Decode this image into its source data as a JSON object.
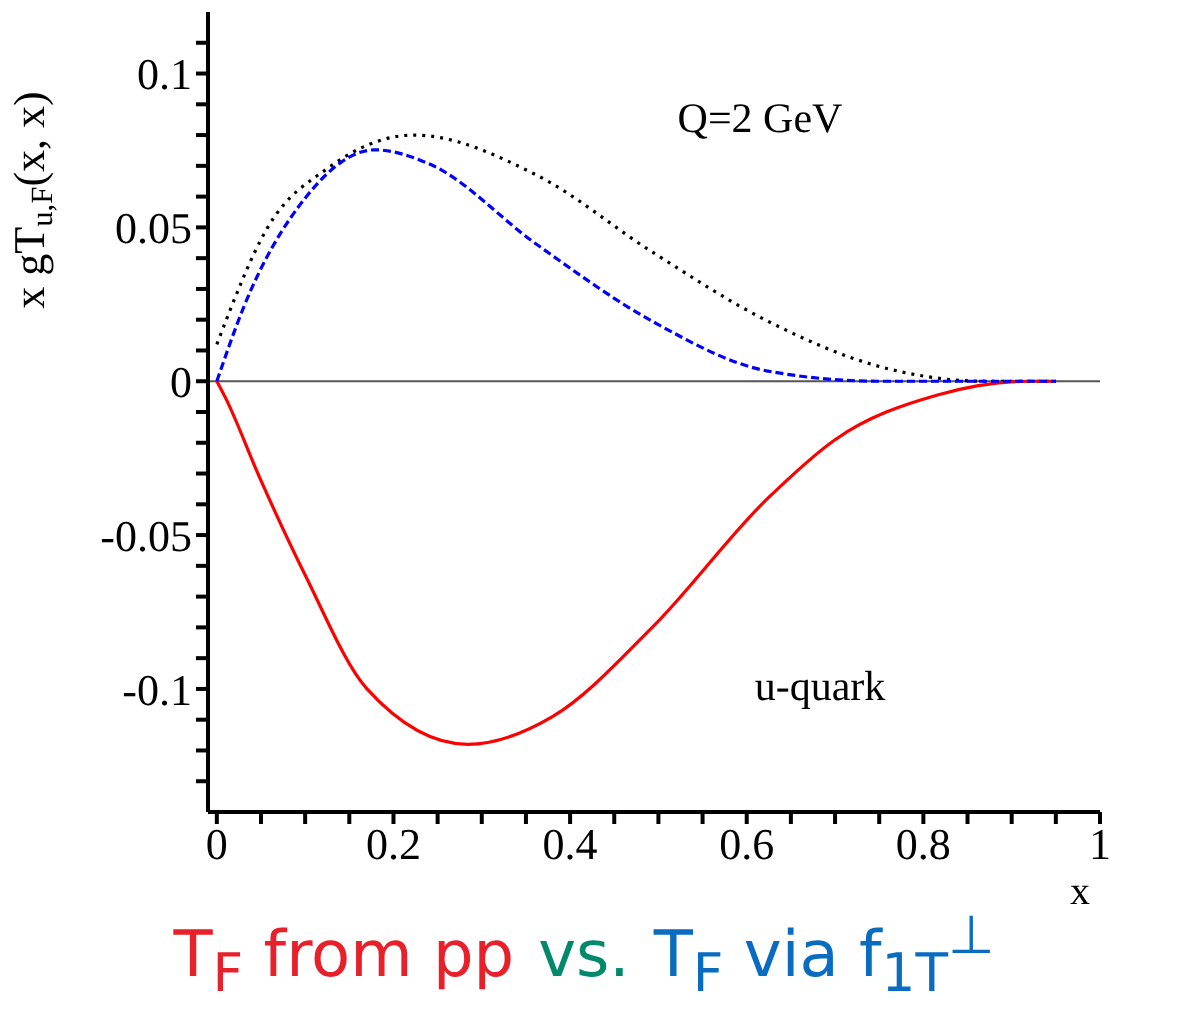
{
  "chart_data": {
    "type": "line",
    "ylabel": "x gT$_{u,F}$(x, x)",
    "xlabel": "x",
    "xlim": [
      -0.01,
      1
    ],
    "xticks": [
      0,
      {
        "value": 0.05,
        "label": null
      },
      0.2,
      {
        "value": 0.1,
        "label": null
      },
      {
        "value": 0.15,
        "label": null
      },
      {
        "value": 0.25,
        "label": null
      },
      {
        "value": 0.3,
        "label": null
      },
      {
        "value": 0.35,
        "label": null
      },
      0.4,
      {
        "value": 0.45,
        "label": null
      },
      {
        "value": 0.5,
        "label": null
      },
      {
        "value": 0.55,
        "label": null
      },
      0.6,
      {
        "value": 0.65,
        "label": null
      },
      {
        "value": 0.7,
        "label": null
      },
      {
        "value": 0.75,
        "label": null
      },
      0.8,
      {
        "value": 0.85,
        "label": null
      },
      {
        "value": 0.9,
        "label": null
      },
      {
        "value": 0.95,
        "label": null
      },
      1
    ],
    "ylim": [
      -0.14,
      0.12
    ],
    "yticks": [
      -0.1,
      -0.05,
      0,
      0.05,
      0.1,
      {
        "value": -0.13,
        "label": null
      },
      {
        "value": -0.12,
        "label": null
      },
      {
        "value": -0.11,
        "label": null
      },
      {
        "value": -0.09,
        "label": null
      },
      {
        "value": -0.08,
        "label": null
      },
      {
        "value": -0.07,
        "label": null
      },
      {
        "value": -0.06,
        "label": null
      },
      {
        "value": -0.04,
        "label": null
      },
      {
        "value": -0.03,
        "label": null
      },
      {
        "value": -0.02,
        "label": null
      },
      {
        "value": -0.01,
        "label": null
      },
      {
        "value": 0.01,
        "label": null
      },
      {
        "value": 0.02,
        "label": null
      },
      {
        "value": 0.03,
        "label": null
      },
      {
        "value": 0.04,
        "label": null
      },
      {
        "value": 0.06,
        "label": null
      },
      {
        "value": 0.07,
        "label": null
      },
      {
        "value": 0.08,
        "label": null
      },
      {
        "value": 0.09,
        "label": null
      },
      {
        "value": 0.11,
        "label": null
      }
    ],
    "marker": "none",
    "ref_lines": [
      {
        "axis": "y",
        "value": 0,
        "color": "#555555",
        "line_style": "solid"
      }
    ],
    "annotations": [
      "Q=2 GeV",
      "u-quark",
      "T$_{F}$ from pp",
      "vs.",
      "T$_{F}$ via f$_{1T}$$^{⊥}$"
    ],
    "series": [
      {
        "color": "#000000",
        "line_style": "dotted",
        "x": [
          0,
          0.057,
          0.127,
          0.223,
          0.362,
          0.493,
          0.624,
          0.754,
          0.87,
          0.95
        ],
        "values": [
          0.012,
          0.0497,
          0.0695,
          0.08,
          0.067,
          0.042,
          0.0195,
          0.0045,
          0,
          0
        ]
      },
      {
        "color": "#0000ff",
        "line_style": "dashed",
        "x": [
          0,
          0.031,
          0.1,
          0.179,
          0.24,
          0.362,
          0.493,
          0.624,
          0.75,
          0.95
        ],
        "values": [
          0,
          0.0245,
          0.0595,
          0.0752,
          0.0707,
          0.0445,
          0.0195,
          0.0033,
          0,
          0
        ]
      },
      {
        "color": "#ff0000",
        "line_style": "solid",
        "x": [
          0,
          0.01,
          0.048,
          0.1,
          0.17,
          0.284,
          0.38,
          0.493,
          0.624,
          0.7,
          0.816,
          0.92,
          0.95
        ],
        "values": [
          0,
          -0.0055,
          -0.031,
          -0.063,
          -0.1,
          -0.118,
          -0.109,
          -0.08,
          -0.038,
          -0.019,
          -0.0045,
          0,
          0
        ]
      }
    ]
  }
}
